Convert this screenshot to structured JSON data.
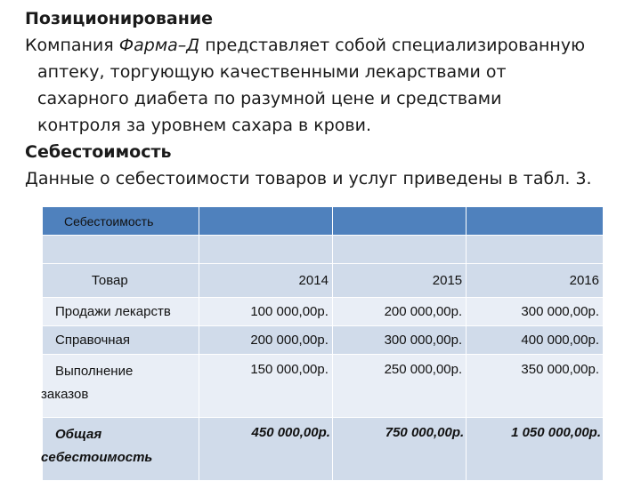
{
  "text": {
    "heading_positioning": "Позиционирование",
    "para_line1_prefix": "Компания ",
    "para_company": "Фарма–Д",
    "para_line1_suffix": " представляет собой специализированную",
    "para_line2": "аптеку, торгующую качественными лекарствами от",
    "para_line3": "сахарного диабета по разумной цене и средствами",
    "para_line4": "контроля за уровнем сахара в крови.",
    "heading_cost": "Себестоимость",
    "cost_intro": "Данные о себестоимости товаров и услуг приведены в табл. 3."
  },
  "table": {
    "title": "Себестоимость",
    "col_header": "Товар",
    "years": [
      "2014",
      "2015",
      "2016"
    ],
    "rows": [
      {
        "label": "Продажи лекарств",
        "values": [
          "100 000,00р.",
          "200 000,00р.",
          "300 000,00р."
        ]
      },
      {
        "label": "Справочная",
        "values": [
          "200 000,00р.",
          "300 000,00р.",
          "400 000,00р."
        ]
      },
      {
        "label_line1": "Выполнение",
        "label_line2": "заказов",
        "values": [
          "150 000,00р.",
          "250 000,00р.",
          "350 000,00р."
        ]
      },
      {
        "label_line1": "Общая",
        "label_line2": "себестоимость",
        "values": [
          "450 000,00р.",
          "750 000,00р.",
          "1 050 000,00р."
        ]
      }
    ]
  },
  "colors": {
    "title_band": "#4f81bd",
    "row_dark": "#d0dbea",
    "row_light": "#e9eef6"
  }
}
